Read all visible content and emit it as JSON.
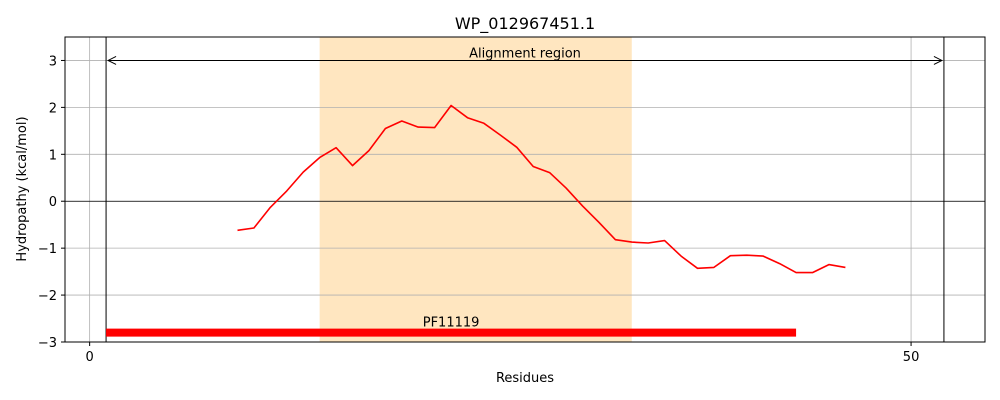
{
  "chart_data": {
    "type": "line",
    "title": "WP_012967451.1",
    "xlabel": "Residues",
    "ylabel": "Hydropathy (kcal/mol)",
    "xlim": [
      -1.5,
      54.5
    ],
    "ylim": [
      -3,
      3.5
    ],
    "xticks": [
      0,
      50
    ],
    "yticks": [
      -3,
      -2,
      -1,
      0,
      1,
      2,
      3
    ],
    "ytick_labels": [
      "−3",
      "−2",
      "−1",
      "0",
      "1",
      "2",
      "3"
    ],
    "grid": true,
    "series": [
      {
        "color": "#ff0000",
        "x": [
          9,
          10,
          11,
          12,
          13,
          14,
          15,
          16,
          17,
          18,
          19,
          20,
          21,
          22,
          23,
          24,
          25,
          26,
          27,
          28,
          29,
          30,
          31,
          32,
          33,
          34,
          35,
          36,
          37,
          38,
          39,
          40,
          41,
          42,
          43,
          44,
          45,
          46
        ],
        "values": [
          -0.62,
          -0.57,
          -0.13,
          0.22,
          0.62,
          0.93,
          1.14,
          0.76,
          1.08,
          1.55,
          1.71,
          1.58,
          1.57,
          2.04,
          1.78,
          1.66,
          1.41,
          1.15,
          0.74,
          0.61,
          0.28,
          -0.1,
          -0.45,
          -0.82,
          -0.87,
          -0.89,
          -0.84,
          -1.17,
          -1.43,
          -1.41,
          -1.16,
          -1.15,
          -1.17,
          -1.33,
          -1.52,
          -1.52,
          -1.35,
          -1.41
        ]
      }
    ],
    "alignment_region": {
      "label": "Alignment region",
      "start": 1,
      "end": 52,
      "y": 3
    },
    "shaded_region": {
      "start": 14,
      "end": 33,
      "color": "#ffe6c0"
    },
    "domains": [
      {
        "label": "PF11119",
        "start": 1,
        "end": 43,
        "y": -2.8,
        "color": "#ff0000"
      }
    ]
  }
}
